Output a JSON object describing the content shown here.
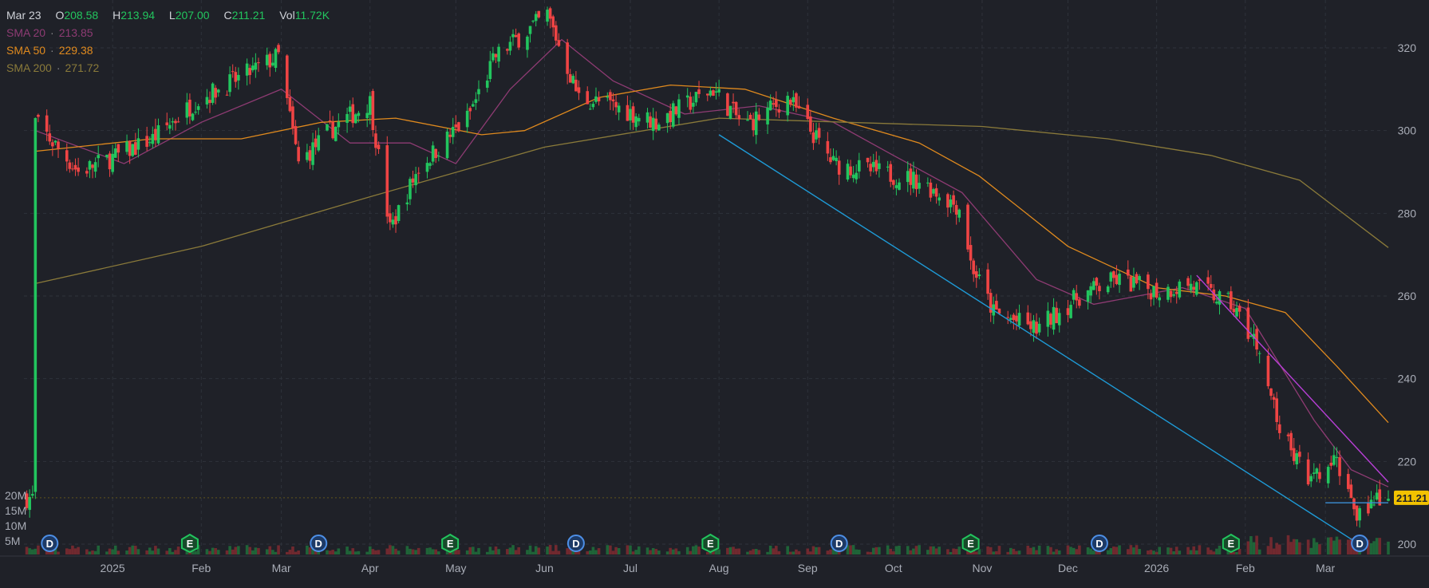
{
  "header": {
    "date": "Mar 23",
    "open_label": "O",
    "open": "208.58",
    "high_label": "H",
    "high": "213.94",
    "low_label": "L",
    "low": "207.00",
    "close_label": "C",
    "close": "211.21",
    "vol_label": "Vol",
    "vol": "11.72K"
  },
  "indicators": [
    {
      "name": "SMA 20",
      "value": "213.85",
      "color": "#8e3b73"
    },
    {
      "name": "SMA 50",
      "value": "229.38",
      "color": "#e08a1e"
    },
    {
      "name": "SMA 200",
      "value": "271.72",
      "color": "#8a7a3a"
    }
  ],
  "chart_data": {
    "type": "candlestick",
    "x_ticks": [
      "2025",
      "Feb",
      "Mar",
      "Apr",
      "May",
      "Jun",
      "Jul",
      "Aug",
      "Sep",
      "Oct",
      "Nov",
      "Dec",
      "2026",
      "Feb",
      "Mar"
    ],
    "y_ticks": [
      200,
      220,
      240,
      260,
      280,
      300,
      320
    ],
    "ylim": [
      198,
      330
    ],
    "volume_ticks": [
      "20M",
      "15M",
      "10M",
      "5M"
    ],
    "last_price_label": "211.21",
    "close_path": [
      {
        "date": "2024-12-05",
        "close": 302
      },
      {
        "date": "2024-12-20",
        "close": 290
      },
      {
        "date": "2025-01-03",
        "close": 294
      },
      {
        "date": "2025-01-15",
        "close": 298
      },
      {
        "date": "2025-01-30",
        "close": 307
      },
      {
        "date": "2025-02-15",
        "close": 313
      },
      {
        "date": "2025-02-28",
        "close": 318
      },
      {
        "date": "2025-03-07",
        "close": 292
      },
      {
        "date": "2025-03-18",
        "close": 300
      },
      {
        "date": "2025-04-01",
        "close": 307
      },
      {
        "date": "2025-04-08",
        "close": 276
      },
      {
        "date": "2025-04-18",
        "close": 291
      },
      {
        "date": "2025-05-05",
        "close": 303
      },
      {
        "date": "2025-05-15",
        "close": 318
      },
      {
        "date": "2025-06-02",
        "close": 328
      },
      {
        "date": "2025-06-13",
        "close": 308
      },
      {
        "date": "2025-06-25",
        "close": 306
      },
      {
        "date": "2025-07-10",
        "close": 302
      },
      {
        "date": "2025-07-30",
        "close": 310
      },
      {
        "date": "2025-08-10",
        "close": 301
      },
      {
        "date": "2025-08-25",
        "close": 308
      },
      {
        "date": "2025-09-10",
        "close": 292
      },
      {
        "date": "2025-09-25",
        "close": 290
      },
      {
        "date": "2025-10-10",
        "close": 288
      },
      {
        "date": "2025-10-25",
        "close": 281
      },
      {
        "date": "2025-10-28",
        "close": 268
      },
      {
        "date": "2025-11-05",
        "close": 256
      },
      {
        "date": "2025-11-20",
        "close": 252
      },
      {
        "date": "2025-12-05",
        "close": 260
      },
      {
        "date": "2025-12-18",
        "close": 264
      },
      {
        "date": "2026-01-02",
        "close": 261
      },
      {
        "date": "2026-01-12",
        "close": 263
      },
      {
        "date": "2026-01-27",
        "close": 258
      },
      {
        "date": "2026-02-05",
        "close": 248
      },
      {
        "date": "2026-02-14",
        "close": 226
      },
      {
        "date": "2026-02-24",
        "close": 215
      },
      {
        "date": "2026-03-05",
        "close": 220
      },
      {
        "date": "2026-03-12",
        "close": 208
      },
      {
        "date": "2026-03-23",
        "close": 211.21
      }
    ],
    "series": [
      {
        "name": "SMA 20",
        "color": "#8e3b73",
        "points": [
          {
            "date": "2024-12-05",
            "v": 300
          },
          {
            "date": "2025-01-05",
            "v": 292
          },
          {
            "date": "2025-02-01",
            "v": 302
          },
          {
            "date": "2025-03-01",
            "v": 310
          },
          {
            "date": "2025-03-25",
            "v": 297
          },
          {
            "date": "2025-04-15",
            "v": 297
          },
          {
            "date": "2025-05-01",
            "v": 292
          },
          {
            "date": "2025-05-20",
            "v": 310
          },
          {
            "date": "2025-06-07",
            "v": 322
          },
          {
            "date": "2025-06-25",
            "v": 312
          },
          {
            "date": "2025-07-20",
            "v": 304
          },
          {
            "date": "2025-08-15",
            "v": 306
          },
          {
            "date": "2025-09-10",
            "v": 302
          },
          {
            "date": "2025-10-01",
            "v": 294
          },
          {
            "date": "2025-10-25",
            "v": 285
          },
          {
            "date": "2025-11-20",
            "v": 264
          },
          {
            "date": "2025-12-10",
            "v": 258
          },
          {
            "date": "2026-01-10",
            "v": 262
          },
          {
            "date": "2026-02-01",
            "v": 257
          },
          {
            "date": "2026-02-25",
            "v": 230
          },
          {
            "date": "2026-03-10",
            "v": 218
          },
          {
            "date": "2026-03-23",
            "v": 213.85
          }
        ]
      },
      {
        "name": "SMA 50",
        "color": "#e08a1e",
        "points": [
          {
            "date": "2024-12-05",
            "v": 295
          },
          {
            "date": "2025-01-15",
            "v": 298
          },
          {
            "date": "2025-02-15",
            "v": 298
          },
          {
            "date": "2025-03-15",
            "v": 302
          },
          {
            "date": "2025-04-10",
            "v": 303
          },
          {
            "date": "2025-05-10",
            "v": 299
          },
          {
            "date": "2025-05-25",
            "v": 300
          },
          {
            "date": "2025-06-20",
            "v": 308
          },
          {
            "date": "2025-07-15",
            "v": 311
          },
          {
            "date": "2025-08-10",
            "v": 310
          },
          {
            "date": "2025-09-10",
            "v": 303
          },
          {
            "date": "2025-10-10",
            "v": 297
          },
          {
            "date": "2025-10-31",
            "v": 289
          },
          {
            "date": "2025-12-01",
            "v": 272
          },
          {
            "date": "2026-01-01",
            "v": 262
          },
          {
            "date": "2026-01-25",
            "v": 260
          },
          {
            "date": "2026-02-15",
            "v": 256
          },
          {
            "date": "2026-03-05",
            "v": 243
          },
          {
            "date": "2026-03-23",
            "v": 229.38
          }
        ]
      },
      {
        "name": "SMA 200",
        "color": "#8a7a3a",
        "points": [
          {
            "date": "2024-12-05",
            "v": 263
          },
          {
            "date": "2025-02-01",
            "v": 272
          },
          {
            "date": "2025-04-01",
            "v": 284
          },
          {
            "date": "2025-06-01",
            "v": 296
          },
          {
            "date": "2025-08-01",
            "v": 303
          },
          {
            "date": "2025-09-15",
            "v": 302
          },
          {
            "date": "2025-11-01",
            "v": 301
          },
          {
            "date": "2025-12-15",
            "v": 298
          },
          {
            "date": "2026-01-20",
            "v": 294
          },
          {
            "date": "2026-02-20",
            "v": 288
          },
          {
            "date": "2026-03-23",
            "v": 271.72
          }
        ]
      }
    ],
    "trendlines": [
      {
        "color": "#1e9bd7",
        "from": {
          "date": "2025-08-01",
          "v": 299
        },
        "to": {
          "date": "2026-03-15",
          "v": 199
        }
      },
      {
        "color": "#b83fd6",
        "from": {
          "date": "2026-01-15",
          "v": 265
        },
        "to": {
          "date": "2026-03-23",
          "v": 215
        }
      },
      {
        "color": "#3d8fd6",
        "from": {
          "date": "2026-03-01",
          "v": 210
        },
        "to": {
          "date": "2026-03-23",
          "v": 210
        }
      }
    ],
    "events": [
      {
        "date": "2024-12-10",
        "label": "D"
      },
      {
        "date": "2025-01-28",
        "label": "E"
      },
      {
        "date": "2025-03-14",
        "label": "D"
      },
      {
        "date": "2025-04-29",
        "label": "E"
      },
      {
        "date": "2025-06-12",
        "label": "D"
      },
      {
        "date": "2025-07-29",
        "label": "E"
      },
      {
        "date": "2025-09-12",
        "label": "D"
      },
      {
        "date": "2025-10-28",
        "label": "E"
      },
      {
        "date": "2025-12-12",
        "label": "D"
      },
      {
        "date": "2026-01-27",
        "label": "E"
      },
      {
        "date": "2026-03-13",
        "label": "D"
      }
    ]
  },
  "colors": {
    "up": "#22c55e",
    "down": "#ef4444",
    "background": "#1f2128",
    "grid": "#2f323b",
    "axis_text": "#a9adb7",
    "last_price_bg": "#f2c200"
  }
}
